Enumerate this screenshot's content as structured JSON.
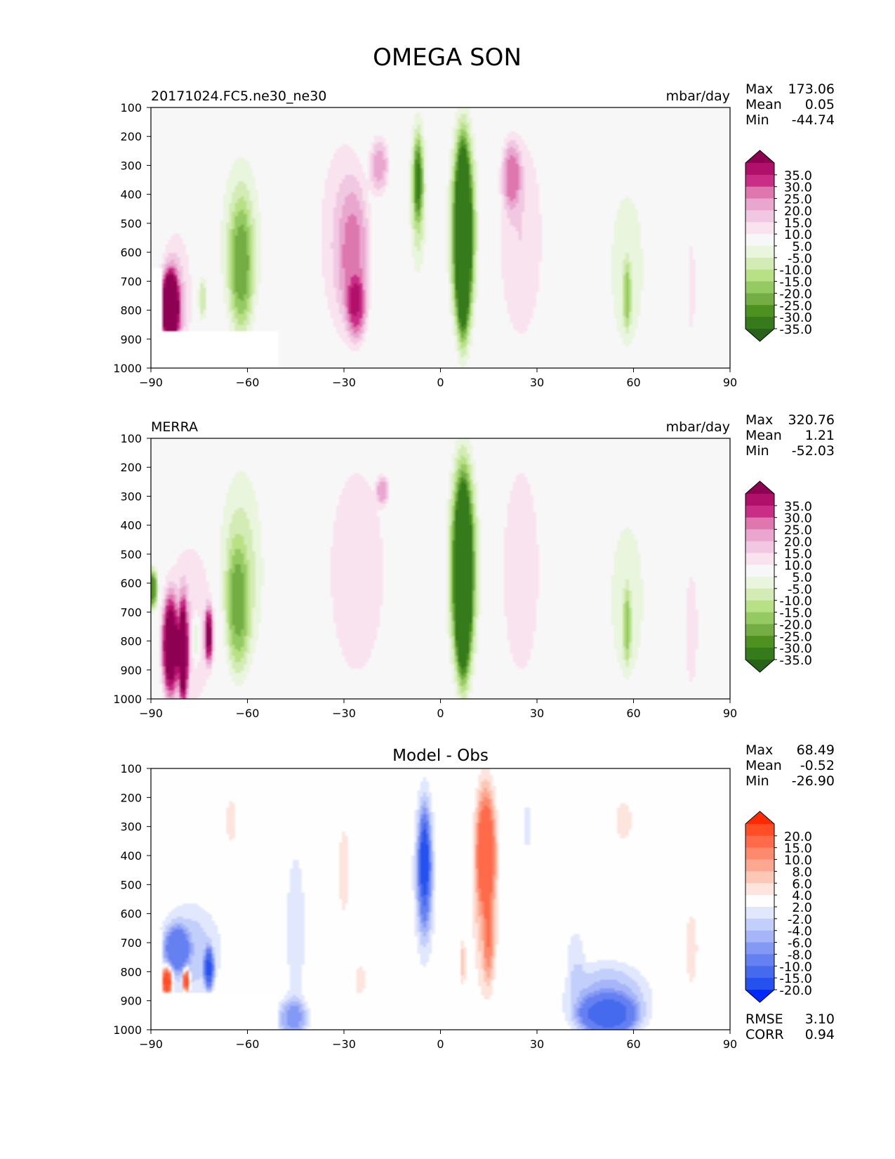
{
  "figure": {
    "title": "OMEGA SON"
  },
  "chart_data": [
    {
      "type": "contour",
      "name": "test",
      "left_title": "20171024.FC5.ne30_ne30",
      "center_title": "",
      "units": "mbar/day",
      "stats": [
        {
          "label": "Max",
          "value": "173.06"
        },
        {
          "label": "Mean",
          "value": "0.05"
        },
        {
          "label": "Min",
          "value": "-44.74"
        }
      ],
      "xlim": [
        -90,
        90
      ],
      "x_ticks": [
        -90,
        -60,
        -30,
        0,
        30,
        60,
        90
      ],
      "x_tick_labels": [
        "−90",
        "−60",
        "−30",
        "0",
        "30",
        "60",
        "90"
      ],
      "ylim": [
        1000,
        100
      ],
      "y_ticks": [
        100,
        200,
        300,
        400,
        500,
        600,
        700,
        800,
        900,
        1000
      ],
      "y_tick_labels": [
        "100",
        "200",
        "300",
        "400",
        "500",
        "600",
        "700",
        "800",
        "900",
        "1000"
      ],
      "levels": [
        "35.0",
        "30.0",
        "25.0",
        "20.0",
        "15.0",
        "10.0",
        "5.0",
        "-5.0",
        "-10.0",
        "-15.0",
        "-20.0",
        "-25.0",
        "-30.0",
        "-35.0"
      ],
      "colorbar_colors": [
        "#8e0152",
        "#b0106a",
        "#c92d86",
        "#de77ae",
        "#e9a6cf",
        "#f1c8e2",
        "#f9e3ef",
        "#f7f7f7",
        "#e9f5dc",
        "#d3ecb5",
        "#b8e186",
        "#95ca63",
        "#73ad43",
        "#4d9221",
        "#357a1b",
        "#276419"
      ],
      "blobs": [
        {
          "lat": -62,
          "p": 580,
          "rlat": 6.5,
          "rp": 320,
          "v": -12
        },
        {
          "lat": -62,
          "p": 650,
          "rlat": 3.5,
          "rp": 220,
          "v": -17
        },
        {
          "lat": -30,
          "p": 550,
          "rlat": 8,
          "rp": 360,
          "v": 10
        },
        {
          "lat": -27,
          "p": 620,
          "rlat": 5,
          "rp": 250,
          "v": 13
        },
        {
          "lat": -26,
          "p": 800,
          "rlat": 3,
          "rp": 110,
          "v": 17
        },
        {
          "lat": -19,
          "p": 300,
          "rlat": 3,
          "rp": 100,
          "v": 17
        },
        {
          "lat": -7,
          "p": 390,
          "rlat": 2.6,
          "rp": 270,
          "v": -15
        },
        {
          "lat": -7,
          "p": 350,
          "rlat": 1.4,
          "rp": 140,
          "v": -22
        },
        {
          "lat": 7,
          "p": 520,
          "rlat": 4.6,
          "rp": 380,
          "v": -18
        },
        {
          "lat": 7,
          "p": 540,
          "rlat": 3.2,
          "rp": 330,
          "v": -28
        },
        {
          "lat": 7,
          "p": 560,
          "rlat": 2,
          "rp": 300,
          "v": -40
        },
        {
          "lat": 25,
          "p": 550,
          "rlat": 7,
          "rp": 370,
          "v": 10
        },
        {
          "lat": 22,
          "p": 330,
          "rlat": 3,
          "rp": 120,
          "v": 17
        },
        {
          "lat": 58,
          "p": 660,
          "rlat": 6,
          "rp": 320,
          "v": -8
        },
        {
          "lat": 58,
          "p": 750,
          "rlat": 1.2,
          "rp": 120,
          "v": -16
        },
        {
          "lat": -82,
          "p": 760,
          "rlat": 5,
          "rp": 250,
          "v": 10
        },
        {
          "lat": -84,
          "p": 790,
          "rlat": 2.4,
          "rp": 110,
          "v": 38
        },
        {
          "lat": -84,
          "p": 790,
          "rlat": 3.5,
          "rp": 150,
          "v": 22
        },
        {
          "lat": -74,
          "p": 760,
          "rlat": 1.3,
          "rp": 80,
          "v": -14
        },
        {
          "lat": 78,
          "p": 720,
          "rlat": 1.4,
          "rp": 200,
          "v": 7
        }
      ],
      "masks": [
        {
          "lat0": -90,
          "lat1": -50,
          "p0": 870,
          "p1": 1000
        },
        {
          "lat0": -90,
          "lat1": -86.5,
          "p0": 655,
          "p1": 1000
        }
      ]
    },
    {
      "type": "contour",
      "name": "reference",
      "left_title": "MERRA",
      "center_title": "",
      "units": "mbar/day",
      "stats": [
        {
          "label": "Max",
          "value": "320.76"
        },
        {
          "label": "Mean",
          "value": "1.21"
        },
        {
          "label": "Min",
          "value": "-52.03"
        }
      ],
      "xlim": [
        -90,
        90
      ],
      "x_ticks": [
        -90,
        -60,
        -30,
        0,
        30,
        60,
        90
      ],
      "x_tick_labels": [
        "−90",
        "−60",
        "−30",
        "0",
        "30",
        "60",
        "90"
      ],
      "ylim": [
        1000,
        100
      ],
      "y_ticks": [
        100,
        200,
        300,
        400,
        500,
        600,
        700,
        800,
        900,
        1000
      ],
      "y_tick_labels": [
        "100",
        "200",
        "300",
        "400",
        "500",
        "600",
        "700",
        "800",
        "900",
        "1000"
      ],
      "levels": [
        "35.0",
        "30.0",
        "25.0",
        "20.0",
        "15.0",
        "10.0",
        "5.0",
        "-5.0",
        "-10.0",
        "-15.0",
        "-20.0",
        "-25.0",
        "-30.0",
        "-35.0"
      ],
      "colorbar_colors": [
        "#8e0152",
        "#b0106a",
        "#c92d86",
        "#de77ae",
        "#e9a6cf",
        "#f1c8e2",
        "#f9e3ef",
        "#f7f7f7",
        "#e9f5dc",
        "#d3ecb5",
        "#b8e186",
        "#95ca63",
        "#73ad43",
        "#4d9221",
        "#357a1b",
        "#276419"
      ],
      "blobs": [
        {
          "lat": -62,
          "p": 560,
          "rlat": 7,
          "rp": 360,
          "v": -12
        },
        {
          "lat": -63,
          "p": 680,
          "rlat": 3.5,
          "rp": 220,
          "v": -17
        },
        {
          "lat": -26,
          "p": 560,
          "rlat": 9,
          "rp": 380,
          "v": 10
        },
        {
          "lat": -18,
          "p": 280,
          "rlat": 2,
          "rp": 50,
          "v": 17
        },
        {
          "lat": 7,
          "p": 540,
          "rlat": 5,
          "rp": 400,
          "v": -18
        },
        {
          "lat": 7,
          "p": 560,
          "rlat": 3.5,
          "rp": 350,
          "v": -28
        },
        {
          "lat": 7,
          "p": 600,
          "rlat": 2.2,
          "rp": 300,
          "v": -40
        },
        {
          "lat": 25,
          "p": 560,
          "rlat": 6,
          "rp": 380,
          "v": 10
        },
        {
          "lat": 58,
          "p": 660,
          "rlat": 6,
          "rp": 320,
          "v": -8
        },
        {
          "lat": 58,
          "p": 750,
          "rlat": 1.2,
          "rp": 130,
          "v": -16
        },
        {
          "lat": -78,
          "p": 750,
          "rlat": 8,
          "rp": 300,
          "v": 10
        },
        {
          "lat": -84,
          "p": 820,
          "rlat": 2.6,
          "rp": 180,
          "v": 40
        },
        {
          "lat": -80,
          "p": 840,
          "rlat": 1.5,
          "rp": 190,
          "v": 40
        },
        {
          "lat": -72,
          "p": 780,
          "rlat": 1.3,
          "rp": 100,
          "v": 32
        },
        {
          "lat": -76,
          "p": 790,
          "rlat": 1.2,
          "rp": 90,
          "v": -17
        },
        {
          "lat": -89.5,
          "p": 620,
          "rlat": 1.5,
          "rp": 70,
          "v": -35
        },
        {
          "lat": 78,
          "p": 760,
          "rlat": 2.5,
          "rp": 250,
          "v": 7
        }
      ],
      "masks": []
    },
    {
      "type": "contour",
      "name": "difference",
      "left_title": "",
      "center_title": "Model - Obs",
      "units": "",
      "stats": [
        {
          "label": "Max",
          "value": "68.49"
        },
        {
          "label": "Mean",
          "value": "-0.52"
        },
        {
          "label": "Min",
          "value": "-26.90"
        }
      ],
      "extra_stats": [
        {
          "label": "RMSE",
          "value": "3.10"
        },
        {
          "label": "CORR",
          "value": "0.94"
        }
      ],
      "xlim": [
        -90,
        90
      ],
      "x_ticks": [
        -90,
        -60,
        -30,
        0,
        30,
        60,
        90
      ],
      "x_tick_labels": [
        "−90",
        "−60",
        "−30",
        "0",
        "30",
        "60",
        "90"
      ],
      "ylim": [
        1000,
        100
      ],
      "y_ticks": [
        100,
        200,
        300,
        400,
        500,
        600,
        700,
        800,
        900,
        1000
      ],
      "y_tick_labels": [
        "100",
        "200",
        "300",
        "400",
        "500",
        "600",
        "700",
        "800",
        "900",
        "1000"
      ],
      "levels": [
        "20.0",
        "15.0",
        "10.0",
        "8.0",
        "6.0",
        "4.0",
        "2.0",
        "-2.0",
        "-4.0",
        "-6.0",
        "-8.0",
        "-10.0",
        "-15.0",
        "-20.0"
      ],
      "colorbar_colors": [
        "#ff2a00",
        "#ff4d26",
        "#fe6a4a",
        "#fd8a6c",
        "#fca891",
        "#fcc8b6",
        "#fde4dc",
        "#fefefe",
        "#e1e7fd",
        "#c3cffb",
        "#a5b5f8",
        "#8499f5",
        "#6580f1",
        "#466aee",
        "#2552ee",
        "#0028ff"
      ],
      "blobs": [
        {
          "lat": -5,
          "p": 460,
          "rlat": 3.5,
          "rp": 310,
          "v": -6
        },
        {
          "lat": -5,
          "p": 440,
          "rlat": 2,
          "rp": 200,
          "v": -10
        },
        {
          "lat": -5,
          "p": 420,
          "rlat": 1.2,
          "rp": 120,
          "v": -13
        },
        {
          "lat": 14,
          "p": 500,
          "rlat": 4,
          "rp": 380,
          "v": 6
        },
        {
          "lat": 14,
          "p": 380,
          "rlat": 3,
          "rp": 200,
          "v": 9
        },
        {
          "lat": 15,
          "p": 700,
          "rlat": 1.6,
          "rp": 140,
          "v": 5
        },
        {
          "lat": -45,
          "p": 650,
          "rlat": 3.5,
          "rp": 320,
          "v": -3
        },
        {
          "lat": -46,
          "p": 960,
          "rlat": 5,
          "rp": 70,
          "v": -8
        },
        {
          "lat": 52,
          "p": 900,
          "rlat": 13,
          "rp": 130,
          "v": -7
        },
        {
          "lat": 52,
          "p": 950,
          "rlat": 9,
          "rp": 70,
          "v": -12
        },
        {
          "lat": -78,
          "p": 730,
          "rlat": 10,
          "rp": 170,
          "v": -5
        },
        {
          "lat": -82,
          "p": 720,
          "rlat": 4,
          "rp": 80,
          "v": -10
        },
        {
          "lat": -72,
          "p": 790,
          "rlat": 1.4,
          "rp": 70,
          "v": -18
        },
        {
          "lat": -85,
          "p": 830,
          "rlat": 1.6,
          "rp": 50,
          "v": 21
        },
        {
          "lat": -79,
          "p": 830,
          "rlat": 1.1,
          "rp": 40,
          "v": 21
        },
        {
          "lat": -65,
          "p": 280,
          "rlat": 2,
          "rp": 90,
          "v": 3
        },
        {
          "lat": 57,
          "p": 280,
          "rlat": 3,
          "rp": 80,
          "v": 3
        },
        {
          "lat": -30,
          "p": 450,
          "rlat": 2,
          "rp": 180,
          "v": 3
        },
        {
          "lat": 27,
          "p": 300,
          "rlat": 1.4,
          "rp": 90,
          "v": -3
        },
        {
          "lat": 42,
          "p": 750,
          "rlat": 3,
          "rp": 110,
          "v": -3
        },
        {
          "lat": 78,
          "p": 720,
          "rlat": 2.2,
          "rp": 150,
          "v": 3
        },
        {
          "lat": -25,
          "p": 830,
          "rlat": 2,
          "rp": 60,
          "v": 3
        },
        {
          "lat": 7,
          "p": 770,
          "rlat": 1,
          "rp": 80,
          "v": 5
        }
      ],
      "masks": [
        {
          "lat0": -90,
          "lat1": -50,
          "p0": 870,
          "p1": 1000
        },
        {
          "lat0": -90,
          "lat1": -86.5,
          "p0": 655,
          "p1": 1000
        }
      ]
    }
  ]
}
